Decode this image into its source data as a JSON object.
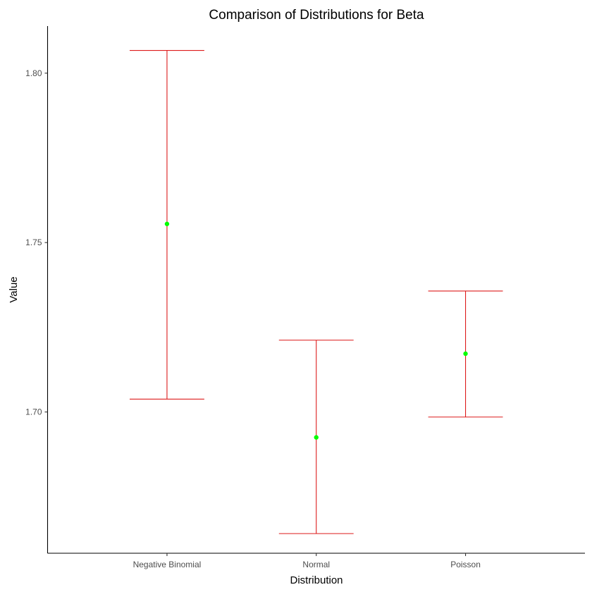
{
  "chart_data": {
    "type": "errorbar",
    "title": "Comparison of Distributions for Beta",
    "xlabel": "Distribution",
    "ylabel": "Value",
    "categories": [
      "Negative Binomial",
      "Normal",
      "Poisson"
    ],
    "points": [
      1.7555,
      1.6925,
      1.7172
    ],
    "lower": [
      1.7038,
      1.6641,
      1.6985
    ],
    "upper": [
      1.8067,
      1.7212,
      1.7357
    ],
    "ylim": [
      1.6583,
      1.8139
    ],
    "yticks": [
      1.7,
      1.75,
      1.8
    ],
    "ytick_labels": [
      "1.70",
      "1.75",
      "1.80"
    ],
    "grid": false,
    "legend": "none",
    "colors": {
      "point": "#00ff00",
      "errorbar": "#dd1c1c"
    }
  }
}
